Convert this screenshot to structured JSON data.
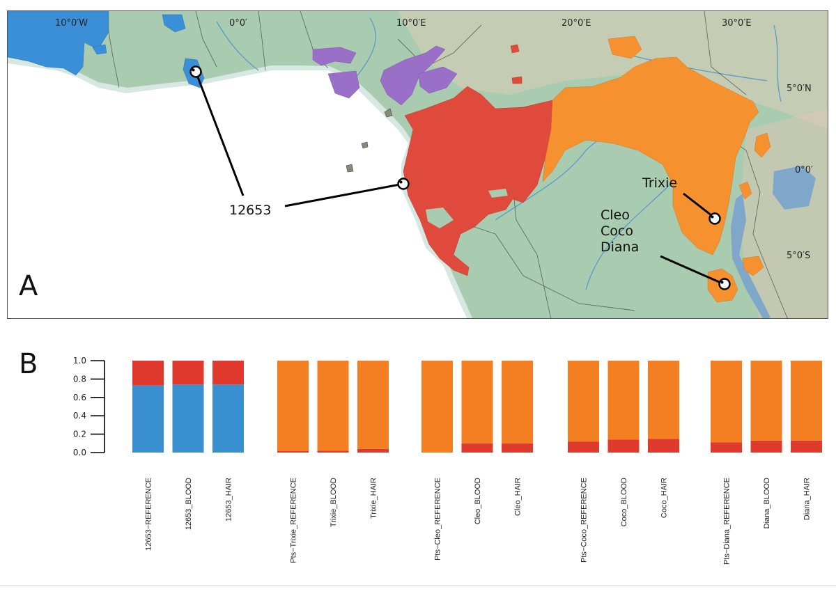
{
  "panel_a": {
    "letter": "A",
    "longitude_labels": [
      "10°0′W",
      "0°0′",
      "10°0′E",
      "20°0′E",
      "30°0′E"
    ],
    "latitude_labels": [
      "5°0′N",
      "0°0′",
      "5°0′S"
    ],
    "callouts": [
      {
        "lines": [
          "12653"
        ]
      },
      {
        "lines": [
          "Trixie"
        ]
      },
      {
        "lines": [
          "Cleo",
          "Coco",
          "Diana"
        ]
      }
    ],
    "colors": {
      "sea": "#ffffff",
      "land": "#a9cbb0",
      "blue_range": "#3a8fd6",
      "purple_range": "#9a6fc8",
      "red_range": "#e04a3c",
      "orange_range": "#f5922f",
      "water": "#7fa7c9"
    }
  },
  "panel_b": {
    "letter": "B"
  },
  "chart_data": {
    "type": "bar",
    "stacked": true,
    "ylim": [
      0,
      1
    ],
    "yticks": [
      "0.0",
      "0.2",
      "0.4",
      "0.6",
      "0.8",
      "1.0"
    ],
    "groups": [
      {
        "categories": [
          "12653−REFERENCE",
          "12653_BLOOD",
          "12653_HAIR"
        ],
        "series": [
          {
            "color": "#3a8fd0",
            "values": [
              0.73,
              0.74,
              0.74
            ]
          },
          {
            "color": "#e03a2e",
            "values": [
              0.27,
              0.26,
              0.26
            ]
          }
        ]
      },
      {
        "categories": [
          "Pts−Trixie_REFERENCE",
          "Trixie_BLOOD",
          "Trixie_HAIR"
        ],
        "series": [
          {
            "color": "#e03a2e",
            "values": [
              0.015,
              0.02,
              0.04
            ]
          },
          {
            "color": "#f47f22",
            "values": [
              0.985,
              0.98,
              0.96
            ]
          }
        ]
      },
      {
        "categories": [
          "Pts−Cleo_REFERENCE",
          "Cleo_BLOOD",
          "Cleo_HAIR"
        ],
        "series": [
          {
            "color": "#e03a2e",
            "values": [
              0.0,
              0.1,
              0.1
            ]
          },
          {
            "color": "#f47f22",
            "values": [
              1.0,
              0.9,
              0.9
            ]
          }
        ]
      },
      {
        "categories": [
          "Pts−Coco_REFERENCE",
          "Coco_BLOOD",
          "Coco_HAIR"
        ],
        "series": [
          {
            "color": "#e03a2e",
            "values": [
              0.12,
              0.14,
              0.15
            ]
          },
          {
            "color": "#f47f22",
            "values": [
              0.88,
              0.86,
              0.85
            ]
          }
        ]
      },
      {
        "categories": [
          "Pts−Diana_REFERENCE",
          "Diana_BLOOD",
          "Diana_HAIR"
        ],
        "series": [
          {
            "color": "#e03a2e",
            "values": [
              0.11,
              0.13,
              0.13
            ]
          },
          {
            "color": "#f47f22",
            "values": [
              0.89,
              0.87,
              0.87
            ]
          }
        ]
      }
    ]
  }
}
